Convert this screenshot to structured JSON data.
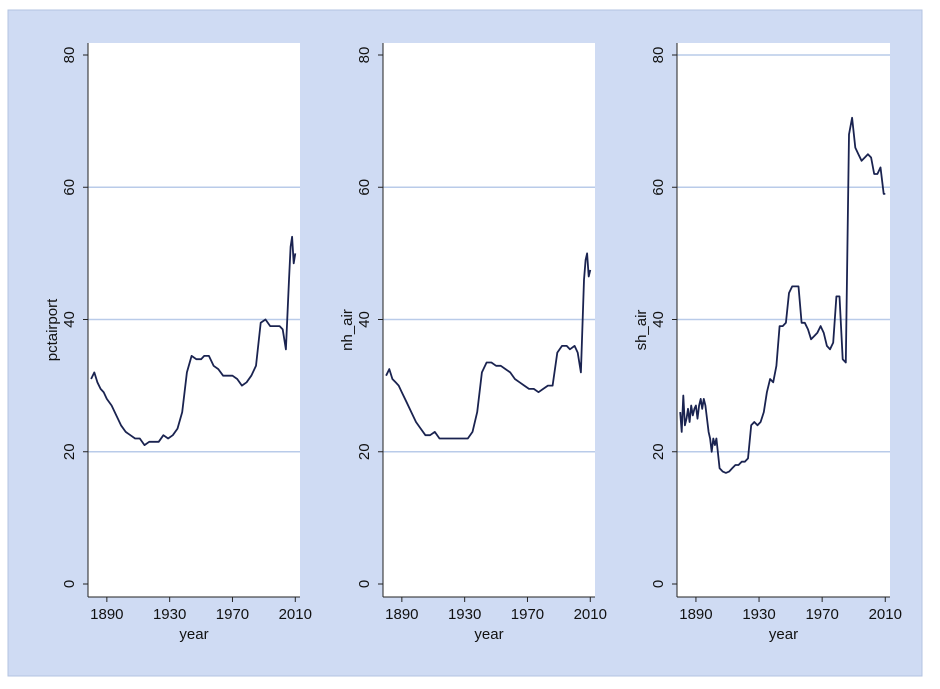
{
  "colors": {
    "outer_background": "#cfdbf3",
    "plot_background": "#ffffff",
    "gridline": "#b9cbe9",
    "line": "#1a2350",
    "axis": "#222222"
  },
  "chart_data": [
    {
      "type": "line",
      "xlabel": "year",
      "ylabel": "pctairport",
      "xlim": [
        1878,
        2013
      ],
      "ylim": [
        0,
        80
      ],
      "xticks": [
        "1890",
        "1930",
        "1970",
        "2010"
      ],
      "yticks": [
        "0",
        "20",
        "40",
        "60",
        "80"
      ],
      "grid": true,
      "series": [
        {
          "x": [
            1880,
            1882,
            1884,
            1886,
            1888,
            1890,
            1893,
            1896,
            1899,
            1902,
            1905,
            1908,
            1911,
            1914,
            1917,
            1920,
            1923,
            1926,
            1929,
            1932,
            1935,
            1938,
            1941,
            1944,
            1947,
            1950,
            1952,
            1955,
            1958,
            1961,
            1964,
            1967,
            1970,
            1973,
            1976,
            1979,
            1982,
            1985,
            1988,
            1991,
            1994,
            1997,
            2000,
            2002,
            2004,
            2006,
            2007,
            2008,
            2009,
            2010
          ],
          "y": [
            31,
            32,
            30.5,
            29.5,
            29,
            28,
            27,
            25.5,
            24,
            23,
            22.5,
            22,
            22,
            21,
            21.5,
            21.5,
            21.5,
            22.5,
            22,
            22.5,
            23.5,
            26,
            32,
            34.5,
            34,
            34,
            34.5,
            34.5,
            33,
            32.5,
            31.5,
            31.5,
            31.5,
            31,
            30,
            30.5,
            31.5,
            33,
            39.5,
            40,
            39,
            39,
            39,
            38.5,
            35.5,
            46,
            51,
            52.5,
            48.5,
            50
          ]
        }
      ]
    },
    {
      "type": "line",
      "xlabel": "year",
      "ylabel": "nh_air",
      "xlim": [
        1878,
        2013
      ],
      "ylim": [
        0,
        80
      ],
      "xticks": [
        "1890",
        "1930",
        "1970",
        "2010"
      ],
      "yticks": [
        "0",
        "20",
        "40",
        "60",
        "80"
      ],
      "grid": true,
      "series": [
        {
          "x": [
            1880,
            1882,
            1884,
            1886,
            1888,
            1890,
            1893,
            1896,
            1899,
            1902,
            1905,
            1908,
            1911,
            1914,
            1917,
            1920,
            1923,
            1926,
            1929,
            1932,
            1935,
            1938,
            1941,
            1944,
            1947,
            1950,
            1953,
            1956,
            1959,
            1962,
            1965,
            1968,
            1971,
            1974,
            1977,
            1980,
            1983,
            1986,
            1989,
            1992,
            1995,
            1997,
            2000,
            2002,
            2004,
            2006,
            2007,
            2008,
            2009,
            2010
          ],
          "y": [
            31.5,
            32.5,
            31,
            30.5,
            30,
            29,
            27.5,
            26,
            24.5,
            23.5,
            22.5,
            22.5,
            23,
            22,
            22,
            22,
            22,
            22,
            22,
            22,
            23,
            26,
            32,
            33.5,
            33.5,
            33,
            33,
            32.5,
            32,
            31,
            30.5,
            30,
            29.5,
            29.5,
            29,
            29.5,
            30,
            30,
            35,
            36,
            36,
            35.5,
            36,
            35,
            32,
            46,
            49,
            50,
            46.5,
            47.5
          ]
        }
      ]
    },
    {
      "type": "line",
      "xlabel": "year",
      "ylabel": "sh_air",
      "xlim": [
        1878,
        2013
      ],
      "ylim": [
        0,
        80
      ],
      "xticks": [
        "1890",
        "1930",
        "1970",
        "2010"
      ],
      "yticks": [
        "0",
        "20",
        "40",
        "60",
        "80"
      ],
      "grid": true,
      "series": [
        {
          "x": [
            1880,
            1881,
            1882,
            1883,
            1884,
            1885,
            1886,
            1887,
            1888,
            1889,
            1890,
            1891,
            1892,
            1893,
            1894,
            1895,
            1896,
            1897,
            1898,
            1899,
            1900,
            1901,
            1902,
            1903,
            1905,
            1907,
            1909,
            1911,
            1913,
            1915,
            1917,
            1919,
            1921,
            1923,
            1925,
            1927,
            1929,
            1931,
            1933,
            1935,
            1937,
            1939,
            1941,
            1943,
            1945,
            1947,
            1949,
            1951,
            1953,
            1955,
            1957,
            1959,
            1961,
            1963,
            1965,
            1967,
            1969,
            1971,
            1973,
            1975,
            1977,
            1979,
            1981,
            1983,
            1985,
            1987,
            1989,
            1991,
            1993,
            1995,
            1997,
            1999,
            2001,
            2003,
            2005,
            2007,
            2009,
            2010
          ],
          "y": [
            26,
            23,
            28.5,
            24,
            25,
            26.5,
            24.5,
            27,
            25.5,
            26.5,
            27,
            25,
            27,
            28,
            26.5,
            28,
            27,
            25,
            23,
            22,
            20,
            22,
            21,
            22,
            17.5,
            17,
            16.8,
            17,
            17.5,
            18,
            18,
            18.5,
            18.5,
            19,
            24,
            24.5,
            24,
            24.5,
            26,
            29,
            31,
            30.5,
            33,
            39,
            39,
            39.5,
            44,
            45,
            45,
            45,
            39.5,
            39.5,
            38.5,
            37,
            37.5,
            38,
            39,
            38,
            36,
            35.5,
            36.5,
            43.5,
            43.5,
            34,
            33.5,
            68,
            70.5,
            66,
            65,
            64,
            64.5,
            65,
            64.5,
            62,
            62,
            63,
            59,
            59
          ]
        }
      ]
    }
  ]
}
